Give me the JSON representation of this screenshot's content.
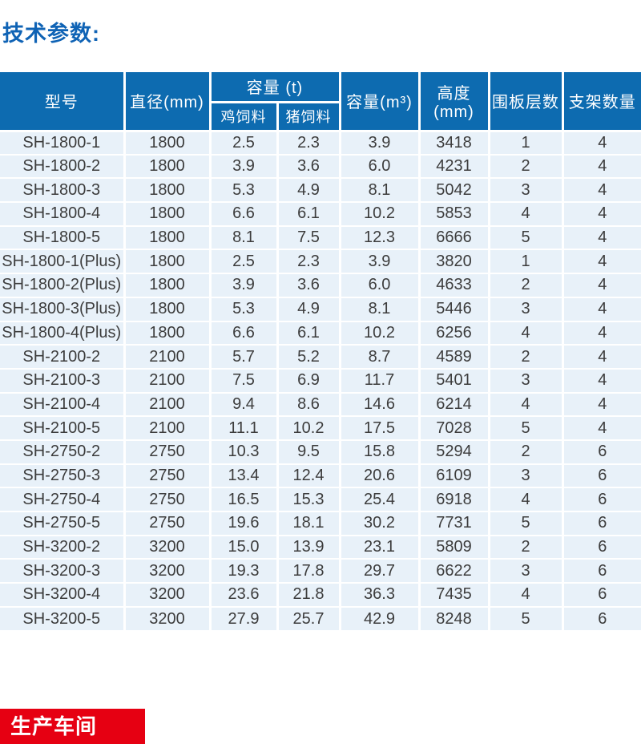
{
  "title": "技术参数:",
  "colors": {
    "accent_blue": "#0d6bb0",
    "row_bg": "#e8f1f9",
    "title_blue": "#0f63b5",
    "banner_red": "#e60012",
    "cell_text": "#3c3c3c"
  },
  "table": {
    "header": {
      "model": "型号",
      "diameter": "直径(mm)",
      "capacity_t_group": "容量 (t)",
      "chicken_feed": "鸡饲料",
      "pig_feed": "猪饲料",
      "capacity_m3": "容量(m³)",
      "height": "高度(mm)",
      "panel_layers": "围板层数",
      "support_count": "支架数量"
    },
    "column_keys": [
      "model",
      "diameter-mm",
      "chicken-feed-capacity-t",
      "pig-feed-capacity-t",
      "capacity-m3",
      "height-mm",
      "panel-layers",
      "support-count"
    ],
    "rows": [
      [
        "SH-1800-1",
        "1800",
        "2.5",
        "2.3",
        "3.9",
        "3418",
        "1",
        "4"
      ],
      [
        "SH-1800-2",
        "1800",
        "3.9",
        "3.6",
        "6.0",
        "4231",
        "2",
        "4"
      ],
      [
        "SH-1800-3",
        "1800",
        "5.3",
        "4.9",
        "8.1",
        "5042",
        "3",
        "4"
      ],
      [
        "SH-1800-4",
        "1800",
        "6.6",
        "6.1",
        "10.2",
        "5853",
        "4",
        "4"
      ],
      [
        "SH-1800-5",
        "1800",
        "8.1",
        "7.5",
        "12.3",
        "6666",
        "5",
        "4"
      ],
      [
        "SH-1800-1(Plus)",
        "1800",
        "2.5",
        "2.3",
        "3.9",
        "3820",
        "1",
        "4"
      ],
      [
        "SH-1800-2(Plus)",
        "1800",
        "3.9",
        "3.6",
        "6.0",
        "4633",
        "2",
        "4"
      ],
      [
        "SH-1800-3(Plus)",
        "1800",
        "5.3",
        "4.9",
        "8.1",
        "5446",
        "3",
        "4"
      ],
      [
        "SH-1800-4(Plus)",
        "1800",
        "6.6",
        "6.1",
        "10.2",
        "6256",
        "4",
        "4"
      ],
      [
        "SH-2100-2",
        "2100",
        "5.7",
        "5.2",
        "8.7",
        "4589",
        "2",
        "4"
      ],
      [
        "SH-2100-3",
        "2100",
        "7.5",
        "6.9",
        "11.7",
        "5401",
        "3",
        "4"
      ],
      [
        "SH-2100-4",
        "2100",
        "9.4",
        "8.6",
        "14.6",
        "6214",
        "4",
        "4"
      ],
      [
        "SH-2100-5",
        "2100",
        "11.1",
        "10.2",
        "17.5",
        "7028",
        "5",
        "4"
      ],
      [
        "SH-2750-2",
        "2750",
        "10.3",
        "9.5",
        "15.8",
        "5294",
        "2",
        "6"
      ],
      [
        "SH-2750-3",
        "2750",
        "13.4",
        "12.4",
        "20.6",
        "6109",
        "3",
        "6"
      ],
      [
        "SH-2750-4",
        "2750",
        "16.5",
        "15.3",
        "25.4",
        "6918",
        "4",
        "6"
      ],
      [
        "SH-2750-5",
        "2750",
        "19.6",
        "18.1",
        "30.2",
        "7731",
        "5",
        "6"
      ],
      [
        "SH-3200-2",
        "3200",
        "15.0",
        "13.9",
        "23.1",
        "5809",
        "2",
        "6"
      ],
      [
        "SH-3200-3",
        "3200",
        "19.3",
        "17.8",
        "29.7",
        "6622",
        "3",
        "6"
      ],
      [
        "SH-3200-4",
        "3200",
        "23.6",
        "21.8",
        "36.3",
        "7435",
        "4",
        "6"
      ],
      [
        "SH-3200-5",
        "3200",
        "27.9",
        "25.7",
        "42.9",
        "8248",
        "5",
        "6"
      ]
    ]
  },
  "footer": {
    "banner_label": "生产车间"
  }
}
